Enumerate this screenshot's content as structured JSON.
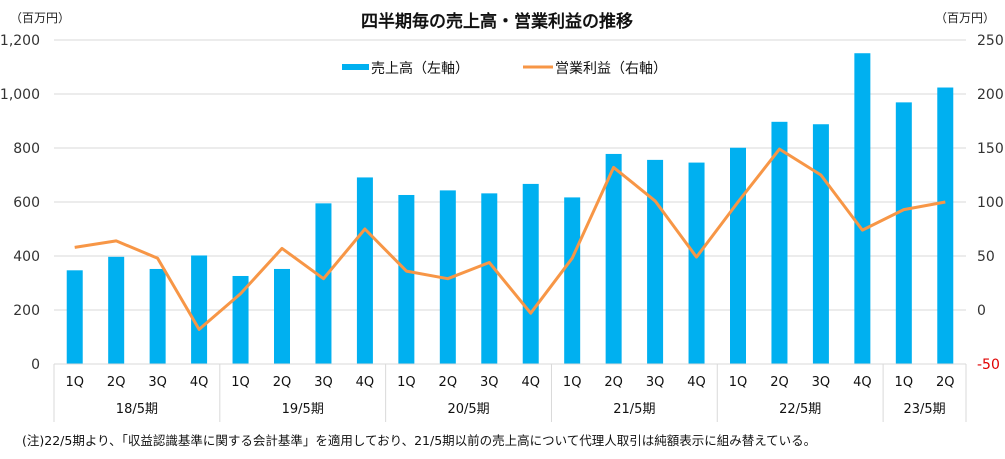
{
  "chart_data": {
    "type": "bar+line",
    "title": "四半期毎の売上高・営業利益の推移",
    "left_axis": {
      "unit_label": "（百万円）",
      "ylim": [
        0,
        1200
      ],
      "ticks": [
        0,
        200,
        400,
        600,
        800,
        1000,
        1200
      ],
      "tick_labels": [
        "0",
        "200",
        "400",
        "600",
        "800",
        "1,000",
        "1,200"
      ]
    },
    "right_axis": {
      "unit_label": "（百万円）",
      "ylim": [
        -50,
        250
      ],
      "ticks": [
        -50,
        0,
        50,
        100,
        150,
        200,
        250
      ],
      "tick_labels": [
        "-50",
        "0",
        "50",
        "100",
        "150",
        "200",
        "250"
      ],
      "negative_color": "#e00000"
    },
    "grid": true,
    "legend_position": "top-center",
    "categories": [
      "1Q",
      "2Q",
      "3Q",
      "4Q",
      "1Q",
      "2Q",
      "3Q",
      "4Q",
      "1Q",
      "2Q",
      "3Q",
      "4Q",
      "1Q",
      "2Q",
      "3Q",
      "4Q",
      "1Q",
      "2Q",
      "3Q",
      "4Q",
      "1Q",
      "2Q"
    ],
    "groups": [
      {
        "label": "18/5期",
        "count": 4
      },
      {
        "label": "19/5期",
        "count": 4
      },
      {
        "label": "20/5期",
        "count": 4
      },
      {
        "label": "21/5期",
        "count": 4
      },
      {
        "label": "22/5期",
        "count": 4
      },
      {
        "label": "23/5期",
        "count": 2
      }
    ],
    "series": [
      {
        "name": "売上高（左軸）",
        "type": "bar",
        "axis": "left",
        "color": "#00b0f0",
        "values": [
          347,
          397,
          352,
          402,
          326,
          352,
          595,
          691,
          626,
          643,
          632,
          667,
          617,
          778,
          756,
          746,
          801,
          897,
          888,
          1151,
          969,
          1024
        ]
      },
      {
        "name": "営業利益（右軸）",
        "type": "line",
        "axis": "right",
        "color": "#f79646",
        "values": [
          58,
          64,
          48,
          -18,
          15,
          57,
          29,
          75,
          36,
          29,
          44,
          -3,
          48,
          132,
          101,
          49,
          100,
          149,
          125,
          74,
          93,
          100
        ]
      }
    ]
  },
  "footnote": "(注)22/5期より、「収益認識基準に関する会計基準」を適用しており、21/5期以前の売上高について代理人取引は純額表示に組み替えている。"
}
